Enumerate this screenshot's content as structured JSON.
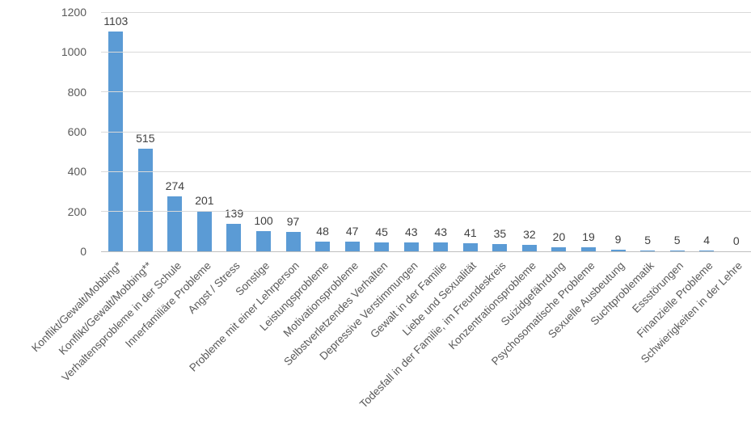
{
  "chart_data": {
    "type": "bar",
    "title": "",
    "xlabel": "",
    "ylabel": "",
    "categories": [
      "Konflikt/Gewalt/Mobbing*",
      "Konflikt/Gewalt/Mobbing**",
      "Verhaltensprobleme in der Schule",
      "Innerfamiliäre Probleme",
      "Angst / Stress",
      "Sonstige",
      "Probleme mit einer Lehrperson",
      "Leistungsprobleme",
      "Motivationsprobleme",
      "Selbstverletzendes Verhalten",
      "Depressive Verstimmungen",
      "Gewalt in der Familie",
      "Liebe und Sexualität",
      "Todesfall in der Familie, im Freundeskreis",
      "Konzentrationsprobleme",
      "Suizidgefährdung",
      "Psychosomatische Probleme",
      "Sexuelle Ausbeutung",
      "Suchtproblematik",
      "Essstörungen",
      "Finanzielle Probleme",
      "Schwierigkeiten in der Lehre"
    ],
    "values": [
      1103,
      515,
      274,
      201,
      139,
      100,
      97,
      48,
      47,
      45,
      43,
      43,
      41,
      35,
      32,
      20,
      19,
      9,
      5,
      5,
      4,
      0
    ],
    "y_ticks": [
      0,
      200,
      400,
      600,
      800,
      1000,
      1200
    ],
    "ylim": [
      0,
      1200
    ],
    "grid": true,
    "legend_position": "none",
    "bar_color": "#5b9bd5",
    "gridline_color": "#d9d9d9",
    "value_label_color": "#404040",
    "axis_label_color": "#595959",
    "x_label_rotation_deg": -45
  }
}
